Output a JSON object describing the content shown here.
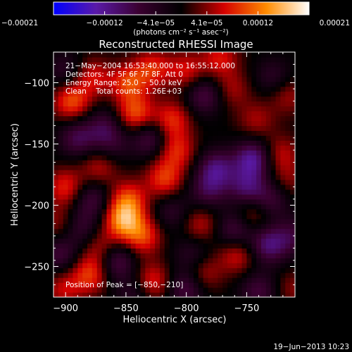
{
  "chart_data": {
    "type": "heatmap",
    "title": "Reconstructed RHESSI Image",
    "xlabel": "Heliocentric X (arcsec)",
    "ylabel": "Heliocentric Y (arcsec)",
    "xlim": [
      -910,
      -710
    ],
    "ylim": [
      -275,
      -75
    ],
    "x_ticks": [
      -900,
      -850,
      -800,
      -750
    ],
    "y_ticks": [
      -250,
      -200,
      -150,
      -100
    ],
    "x_tick_labels": [
      "−900",
      "−850",
      "−800",
      "−750"
    ],
    "y_tick_labels": [
      "−250",
      "−200",
      "−150",
      "−100"
    ],
    "colorbar": {
      "range": [
        -0.00021,
        0.00021
      ],
      "tick_labels": [
        "−0.00021",
        "−0.00012",
        "−4.1e−05",
        "4.1e−05",
        "0.00012",
        "0.00021"
      ],
      "units_label": "(photons cm⁻² s⁻¹ asec⁻²)",
      "colormap": [
        "#0000ff",
        "#5a1aa8",
        "#3a0030",
        "#000000",
        "#d40000",
        "#ff8c00",
        "#ffffff"
      ]
    },
    "annotations": [
      "21−May−2004 16:53:40.000 to 16:55:12.000",
      "Detectors: 4F 5F 6F 7F 8F, Att 0",
      "Energy Range: 25.0 − 50.0 keV",
      "Clean    Total counts: 1.26E+03"
    ],
    "peak_label": "Position of Peak = [−850,−210]",
    "peak": [
      -850,
      -210
    ],
    "grid_step": 4,
    "blobs": [
      {
        "x": -895,
        "y": -115,
        "v": 1.0
      },
      {
        "x": -878,
        "y": -95,
        "v": 0.7
      },
      {
        "x": -848,
        "y": -100,
        "v": 0.9
      },
      {
        "x": -828,
        "y": -88,
        "v": 0.8
      },
      {
        "x": -842,
        "y": -125,
        "v": 1.0
      },
      {
        "x": -812,
        "y": -130,
        "v": 0.85
      },
      {
        "x": -800,
        "y": -90,
        "v": 0.7
      },
      {
        "x": -772,
        "y": -80,
        "v": 0.7
      },
      {
        "x": -808,
        "y": -155,
        "v": 0.8
      },
      {
        "x": -818,
        "y": -178,
        "v": 0.9
      },
      {
        "x": -872,
        "y": -168,
        "v": 0.6
      },
      {
        "x": -900,
        "y": -185,
        "v": 0.8
      },
      {
        "x": -848,
        "y": -195,
        "v": 0.9
      },
      {
        "x": -852,
        "y": -212,
        "v": 1.3
      },
      {
        "x": -836,
        "y": -225,
        "v": 0.9
      },
      {
        "x": -870,
        "y": -235,
        "v": 0.6
      },
      {
        "x": -880,
        "y": -256,
        "v": 0.9
      },
      {
        "x": -828,
        "y": -262,
        "v": 0.8
      },
      {
        "x": -786,
        "y": -255,
        "v": 0.6
      },
      {
        "x": -758,
        "y": -240,
        "v": 0.7
      },
      {
        "x": -788,
        "y": -215,
        "v": 0.6
      },
      {
        "x": -745,
        "y": -207,
        "v": 0.6
      },
      {
        "x": -742,
        "y": -130,
        "v": 0.5
      },
      {
        "x": -722,
        "y": -158,
        "v": 0.6
      },
      {
        "x": -716,
        "y": -110,
        "v": 0.5
      },
      {
        "x": -716,
        "y": -180,
        "v": 0.4
      },
      {
        "x": -712,
        "y": -268,
        "v": 0.4
      },
      {
        "x": -762,
        "y": -105,
        "v": 0.5
      },
      {
        "x": -905,
        "y": -215,
        "v": 0.5
      },
      {
        "x": -902,
        "y": -268,
        "v": 0.6
      },
      {
        "x": -890,
        "y": -145,
        "v": -0.8
      },
      {
        "x": -868,
        "y": -135,
        "v": -0.6
      },
      {
        "x": -900,
        "y": -90,
        "v": -0.5
      },
      {
        "x": -830,
        "y": -145,
        "v": -0.8
      },
      {
        "x": -862,
        "y": -150,
        "v": -0.5
      },
      {
        "x": -785,
        "y": -110,
        "v": -0.8
      },
      {
        "x": -782,
        "y": -188,
        "v": -0.7
      },
      {
        "x": -795,
        "y": -240,
        "v": -0.5
      },
      {
        "x": -775,
        "y": -170,
        "v": -1.0
      },
      {
        "x": -745,
        "y": -162,
        "v": -1.2
      },
      {
        "x": -750,
        "y": -185,
        "v": -0.9
      },
      {
        "x": -800,
        "y": -268,
        "v": -0.8
      },
      {
        "x": -760,
        "y": -220,
        "v": -0.8
      },
      {
        "x": -732,
        "y": -232,
        "v": -1.0
      },
      {
        "x": -730,
        "y": -195,
        "v": -0.7
      },
      {
        "x": -858,
        "y": -245,
        "v": -0.9
      },
      {
        "x": -888,
        "y": -218,
        "v": -0.6
      },
      {
        "x": -878,
        "y": -195,
        "v": -0.7
      },
      {
        "x": -905,
        "y": -240,
        "v": -0.7
      },
      {
        "x": -843,
        "y": -272,
        "v": -0.5
      },
      {
        "x": -712,
        "y": -225,
        "v": -0.6
      },
      {
        "x": -728,
        "y": -95,
        "v": -0.5
      },
      {
        "x": -740,
        "y": -270,
        "v": -0.7
      },
      {
        "x": -812,
        "y": -205,
        "v": -0.5
      }
    ]
  },
  "footer": {
    "date": "19−Jun−2013 10:23"
  }
}
